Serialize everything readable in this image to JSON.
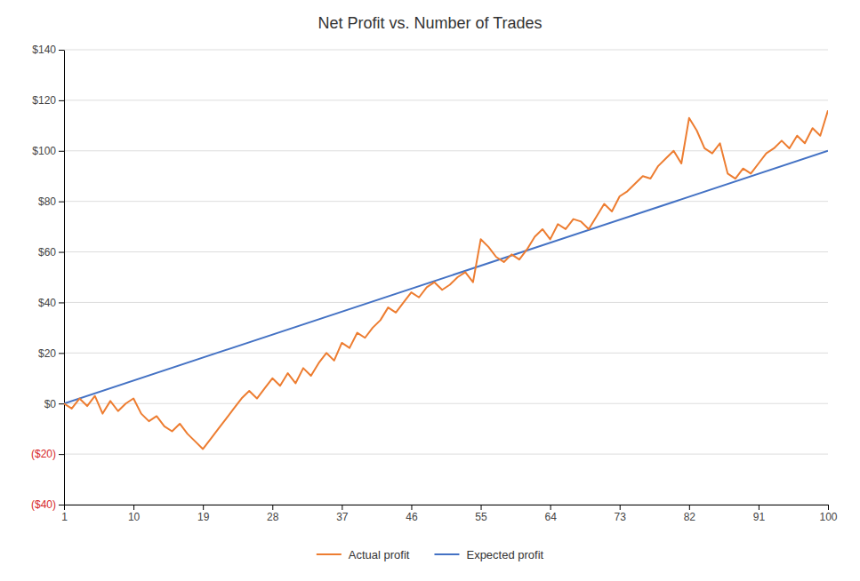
{
  "chart_data": {
    "type": "line",
    "title": "Net Profit vs. Number of Trades",
    "series": [
      {
        "name": "Actual profit",
        "color": "#ED7D31",
        "x": [
          1,
          2,
          3,
          4,
          5,
          6,
          7,
          8,
          9,
          10,
          11,
          12,
          13,
          14,
          15,
          16,
          17,
          18,
          19,
          20,
          21,
          22,
          23,
          24,
          25,
          26,
          27,
          28,
          29,
          30,
          31,
          32,
          33,
          34,
          35,
          36,
          37,
          38,
          39,
          40,
          41,
          42,
          43,
          44,
          45,
          46,
          47,
          48,
          49,
          50,
          51,
          52,
          53,
          54,
          55,
          56,
          57,
          58,
          59,
          60,
          61,
          62,
          63,
          64,
          65,
          66,
          67,
          68,
          69,
          70,
          71,
          72,
          73,
          74,
          75,
          76,
          77,
          78,
          79,
          80,
          81,
          82,
          83,
          84,
          85,
          86,
          87,
          88,
          89,
          90,
          91,
          92,
          93,
          94,
          95,
          96,
          97,
          98,
          99,
          100
        ],
        "values": [
          0,
          -2,
          2,
          -1,
          3,
          -4,
          1,
          -3,
          0,
          2,
          -4,
          -7,
          -5,
          -9,
          -11,
          -8,
          -12,
          -15,
          -18,
          -14,
          -10,
          -6,
          -2,
          2,
          5,
          2,
          6,
          10,
          7,
          12,
          8,
          14,
          11,
          16,
          20,
          17,
          24,
          22,
          28,
          26,
          30,
          33,
          38,
          36,
          40,
          44,
          42,
          46,
          48,
          45,
          47,
          50,
          52,
          48,
          65,
          62,
          58,
          56,
          59,
          57,
          61,
          66,
          69,
          65,
          71,
          69,
          73,
          72,
          69,
          74,
          79,
          76,
          82,
          84,
          87,
          90,
          89,
          94,
          97,
          100,
          95,
          113,
          108,
          101,
          99,
          103,
          91,
          89,
          93,
          91,
          95,
          99,
          101,
          104,
          101,
          106,
          103,
          109,
          106,
          116
        ]
      },
      {
        "name": "Expected profit",
        "color": "#4472C4",
        "x": [
          1,
          100
        ],
        "values": [
          0,
          100
        ]
      }
    ],
    "xlim": [
      1,
      100
    ],
    "xticks": [
      1,
      10,
      19,
      28,
      37,
      46,
      55,
      64,
      73,
      82,
      91,
      100
    ],
    "ylim": [
      -40,
      140
    ],
    "yticks": [
      {
        "value": -40,
        "label": "($40)"
      },
      {
        "value": -20,
        "label": "($20)"
      },
      {
        "value": 0,
        "label": "$0"
      },
      {
        "value": 20,
        "label": "$20"
      },
      {
        "value": 40,
        "label": "$40"
      },
      {
        "value": 60,
        "label": "$60"
      },
      {
        "value": 80,
        "label": "$80"
      },
      {
        "value": 100,
        "label": "$100"
      },
      {
        "value": 120,
        "label": "$120"
      },
      {
        "value": 140,
        "label": "$140"
      }
    ],
    "grid": true,
    "legend": "bottom"
  }
}
